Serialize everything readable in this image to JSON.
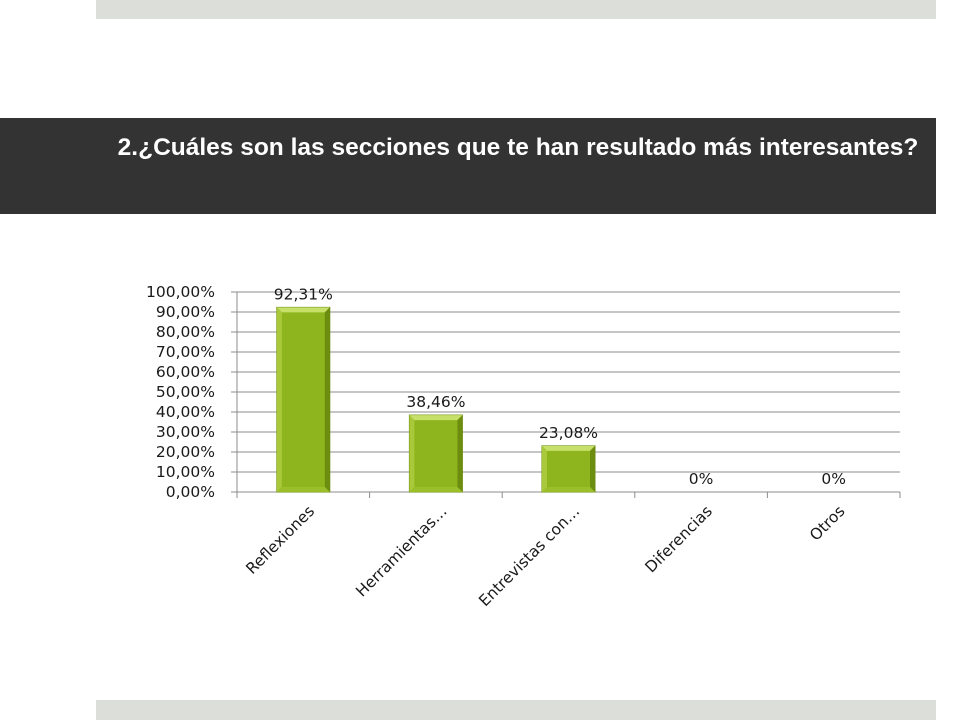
{
  "slide": {
    "title": "2.¿Cuáles son las secciones que te han resultado más interesantes?"
  },
  "colors": {
    "bar": "#8fb51e",
    "bar_light": "#c7e06a",
    "bar_dark": "#6d8d10",
    "title_band": "#333333",
    "deco_bar": "#dcdfd9"
  },
  "chart_data": {
    "type": "bar",
    "categories": [
      "Reflexiones",
      "Herramientas…",
      "Entrevistas con…",
      "Diferencias",
      "Otros"
    ],
    "values": [
      92.31,
      38.46,
      23.08,
      0,
      0
    ],
    "data_labels": [
      "92,31%",
      "38,46%",
      "23,08%",
      "0%",
      "0%"
    ],
    "y_tick_labels": [
      "0,00%",
      "10,00%",
      "20,00%",
      "30,00%",
      "40,00%",
      "50,00%",
      "60,00%",
      "70,00%",
      "80,00%",
      "90,00%",
      "100,00%"
    ],
    "ylim": [
      0,
      100
    ],
    "grid": true,
    "legend": "none",
    "x_label_rotation": "-45 degrees",
    "title": "",
    "xlabel": "",
    "ylabel": ""
  }
}
